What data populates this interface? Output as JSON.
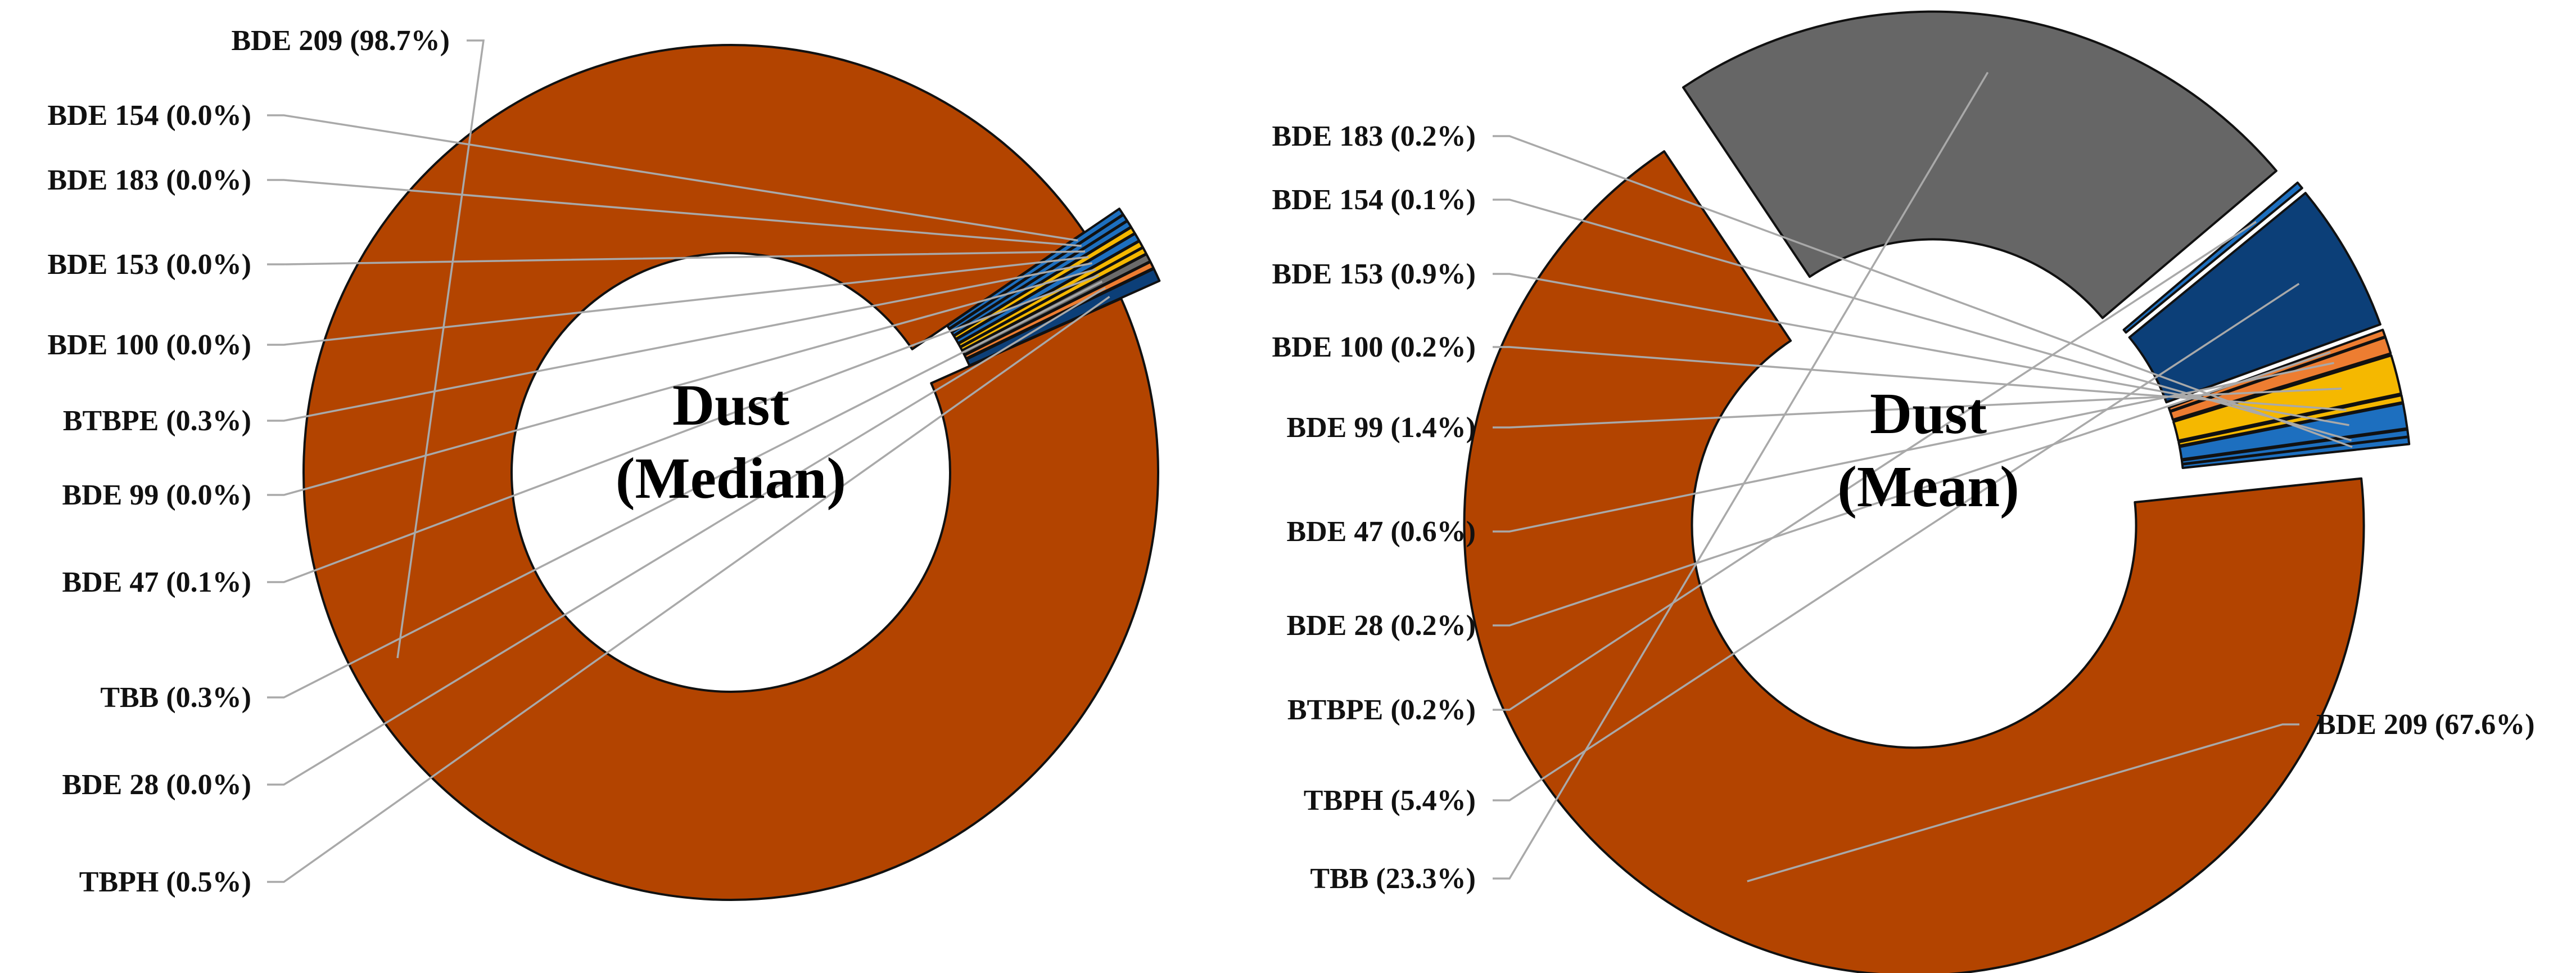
{
  "chart_data": [
    {
      "type": "pie",
      "variant": "donut",
      "title": "Dust (Median)",
      "title_lines": [
        "Dust",
        "(Median)"
      ],
      "slices": [
        {
          "name": "BDE 209",
          "value": 98.7,
          "label": "BDE 209 (98.7%)",
          "color": "#b34400",
          "exploded": false
        },
        {
          "name": "BDE 154",
          "value": 0.0,
          "label": "BDE 154 (0.0%)",
          "color": "#1d6fbf",
          "exploded": true
        },
        {
          "name": "BDE 183",
          "value": 0.0,
          "label": "BDE 183 (0.0%)",
          "color": "#1d6fbf",
          "exploded": true
        },
        {
          "name": "BDE 153",
          "value": 0.0,
          "label": "BDE 153 (0.0%)",
          "color": "#1d6fbf",
          "exploded": true
        },
        {
          "name": "BDE 100",
          "value": 0.0,
          "label": "BDE 100 (0.0%)",
          "color": "#f5b800",
          "exploded": true
        },
        {
          "name": "BTBPE",
          "value": 0.3,
          "label": "BTBPE (0.3%)",
          "color": "#1d6fbf",
          "exploded": true
        },
        {
          "name": "BDE 99",
          "value": 0.0,
          "label": "BDE 99 (0.0%)",
          "color": "#f5b800",
          "exploded": true
        },
        {
          "name": "BDE 47",
          "value": 0.1,
          "label": "BDE 47 (0.1%)",
          "color": "#f5b800",
          "exploded": true
        },
        {
          "name": "TBB",
          "value": 0.3,
          "label": "TBB (0.3%)",
          "color": "#6b6b6b",
          "exploded": true
        },
        {
          "name": "BDE 28",
          "value": 0.0,
          "label": "BDE 28 (0.0%)",
          "color": "#ed7d31",
          "exploded": true
        },
        {
          "name": "TBPH",
          "value": 0.5,
          "label": "TBPH (0.5%)",
          "color": "#0c3f78",
          "exploded": true
        }
      ]
    },
    {
      "type": "pie",
      "variant": "donut",
      "title": "Dust (Mean)",
      "title_lines": [
        "Dust",
        "(Mean)"
      ],
      "slices": [
        {
          "name": "BDE 209",
          "value": 67.6,
          "label": "BDE 209 (67.6%)",
          "color": "#b34400",
          "exploded": true
        },
        {
          "name": "TBB",
          "value": 23.3,
          "label": "TBB (23.3%)",
          "color": "#666666",
          "exploded": true
        },
        {
          "name": "BTBPE",
          "value": 0.2,
          "label": "BTBPE (0.2%)",
          "color": "#1d6fbf",
          "exploded": true
        },
        {
          "name": "TBPH",
          "value": 5.4,
          "label": "TBPH (5.4%)",
          "color": "#0c3f78",
          "exploded": true
        },
        {
          "name": "BDE 28",
          "value": 0.2,
          "label": "BDE 28 (0.2%)",
          "color": "#ed7d31",
          "exploded": true
        },
        {
          "name": "BDE 47",
          "value": 0.6,
          "label": "BDE 47 (0.6%)",
          "color": "#ed7d31",
          "exploded": true
        },
        {
          "name": "BDE 99",
          "value": 1.4,
          "label": "BDE 99 (1.4%)",
          "color": "#f5b800",
          "exploded": true
        },
        {
          "name": "BDE 100",
          "value": 0.2,
          "label": "BDE 100 (0.2%)",
          "color": "#f5b800",
          "exploded": true
        },
        {
          "name": "BDE 153",
          "value": 0.9,
          "label": "BDE 153 (0.9%)",
          "color": "#1d6fbf",
          "exploded": true
        },
        {
          "name": "BDE 154",
          "value": 0.1,
          "label": "BDE 154 (0.1%)",
          "color": "#1d6fbf",
          "exploded": true
        },
        {
          "name": "BDE 183",
          "value": 0.2,
          "label": "BDE 183 (0.2%)",
          "color": "#1d6fbf",
          "exploded": true
        }
      ]
    }
  ]
}
